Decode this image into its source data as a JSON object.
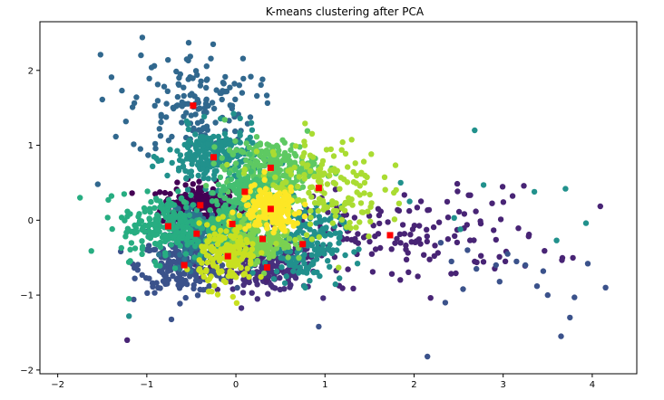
{
  "chart_data": {
    "type": "scatter",
    "title": "K-means clustering after PCA",
    "xlabel": "",
    "ylabel": "",
    "xlim": [
      -2.2,
      4.5
    ],
    "ylim": [
      -2.05,
      2.65
    ],
    "x_ticks": [
      -2,
      -1,
      0,
      1,
      2,
      3,
      4
    ],
    "y_ticks": [
      -2,
      -1,
      0,
      1,
      2
    ],
    "grid": false,
    "legend": "none",
    "colormap": "viridis",
    "centroid_color": "#ff0000",
    "clusters": [
      {
        "color": "#440154",
        "centroid": [
          -0.4,
          0.2
        ],
        "spread": [
          0.22,
          0.14
        ],
        "n": 220
      },
      {
        "color": "#472f7d",
        "centroid": [
          0.35,
          -0.63
        ],
        "spread": [
          0.28,
          0.16
        ],
        "n": 220
      },
      {
        "color": "#3b528b",
        "centroid": [
          -0.58,
          -0.6
        ],
        "spread": [
          0.25,
          0.18
        ],
        "n": 220
      },
      {
        "color": "#31688e",
        "centroid": [
          -0.48,
          1.53
        ],
        "spread": [
          0.35,
          0.35
        ],
        "n": 150
      },
      {
        "color": "#482475",
        "centroid": [
          1.73,
          -0.2
        ],
        "spread": [
          0.9,
          0.32
        ],
        "n": 170
      },
      {
        "color": "#2c728e",
        "centroid": [
          -0.44,
          -0.18
        ],
        "spread": [
          0.15,
          0.16
        ],
        "n": 160
      },
      {
        "color": "#21918c",
        "centroid": [
          -0.25,
          0.84
        ],
        "spread": [
          0.26,
          0.2
        ],
        "n": 230
      },
      {
        "color": "#21908d",
        "centroid": [
          0.75,
          -0.32
        ],
        "spread": [
          0.22,
          0.25
        ],
        "n": 200
      },
      {
        "color": "#27ad81",
        "centroid": [
          -0.76,
          -0.08
        ],
        "spread": [
          0.26,
          0.22
        ],
        "n": 220
      },
      {
        "color": "#35b779",
        "centroid": [
          -0.04,
          -0.05
        ],
        "spread": [
          0.16,
          0.14
        ],
        "n": 160
      },
      {
        "color": "#5ec962",
        "centroid": [
          0.39,
          0.7
        ],
        "spread": [
          0.26,
          0.18
        ],
        "n": 230
      },
      {
        "color": "#44bf70",
        "centroid": [
          0.1,
          0.38
        ],
        "spread": [
          0.16,
          0.14
        ],
        "n": 140
      },
      {
        "color": "#7ad151",
        "centroid": [
          0.3,
          -0.25
        ],
        "spread": [
          0.17,
          0.15
        ],
        "n": 170
      },
      {
        "color": "#aadc32",
        "centroid": [
          0.93,
          0.43
        ],
        "spread": [
          0.35,
          0.35
        ],
        "n": 180
      },
      {
        "color": "#c8e020",
        "centroid": [
          -0.09,
          -0.48
        ],
        "spread": [
          0.16,
          0.2
        ],
        "n": 170
      },
      {
        "color": "#fde725",
        "centroid": [
          0.39,
          0.15
        ],
        "spread": [
          0.17,
          0.15
        ],
        "n": 170
      }
    ],
    "outliers": [
      [
        -1.52,
        2.21
      ],
      [
        -1.05,
        2.44
      ],
      [
        -0.53,
        2.37
      ],
      [
        -1.28,
        1.73
      ],
      [
        -1.75,
        0.3
      ],
      [
        -1.55,
        0.48
      ],
      [
        -1.22,
        -1.6
      ],
      [
        -1.2,
        -1.28
      ],
      [
        2.68,
        1.2
      ],
      [
        2.78,
        0.47
      ],
      [
        3.35,
        0.38
      ],
      [
        3.7,
        0.42
      ],
      [
        3.93,
        -0.04
      ],
      [
        3.6,
        -0.27
      ],
      [
        3.95,
        -0.58
      ],
      [
        4.15,
        -0.9
      ],
      [
        3.8,
        -1.03
      ],
      [
        3.75,
        -1.3
      ],
      [
        3.65,
        -1.55
      ],
      [
        3.45,
        -0.68
      ],
      [
        3.38,
        -0.88
      ],
      [
        3.5,
        -1.0
      ],
      [
        3.25,
        -0.6
      ],
      [
        3.05,
        -0.45
      ],
      [
        2.96,
        -0.82
      ],
      [
        2.92,
        -0.6
      ],
      [
        3.15,
        -0.55
      ],
      [
        2.15,
        -1.82
      ],
      [
        0.93,
        -1.42
      ],
      [
        2.35,
        -1.1
      ],
      [
        2.55,
        -0.92
      ],
      [
        2.42,
        -0.55
      ],
      [
        2.6,
        -0.4
      ],
      [
        2.7,
        -0.65
      ],
      [
        2.52,
        -0.12
      ],
      [
        2.45,
        0.03
      ],
      [
        2.3,
        -0.3
      ],
      [
        1.95,
        0.25
      ],
      [
        1.85,
        0.5
      ],
      [
        -1.2,
        -1.05
      ]
    ]
  }
}
